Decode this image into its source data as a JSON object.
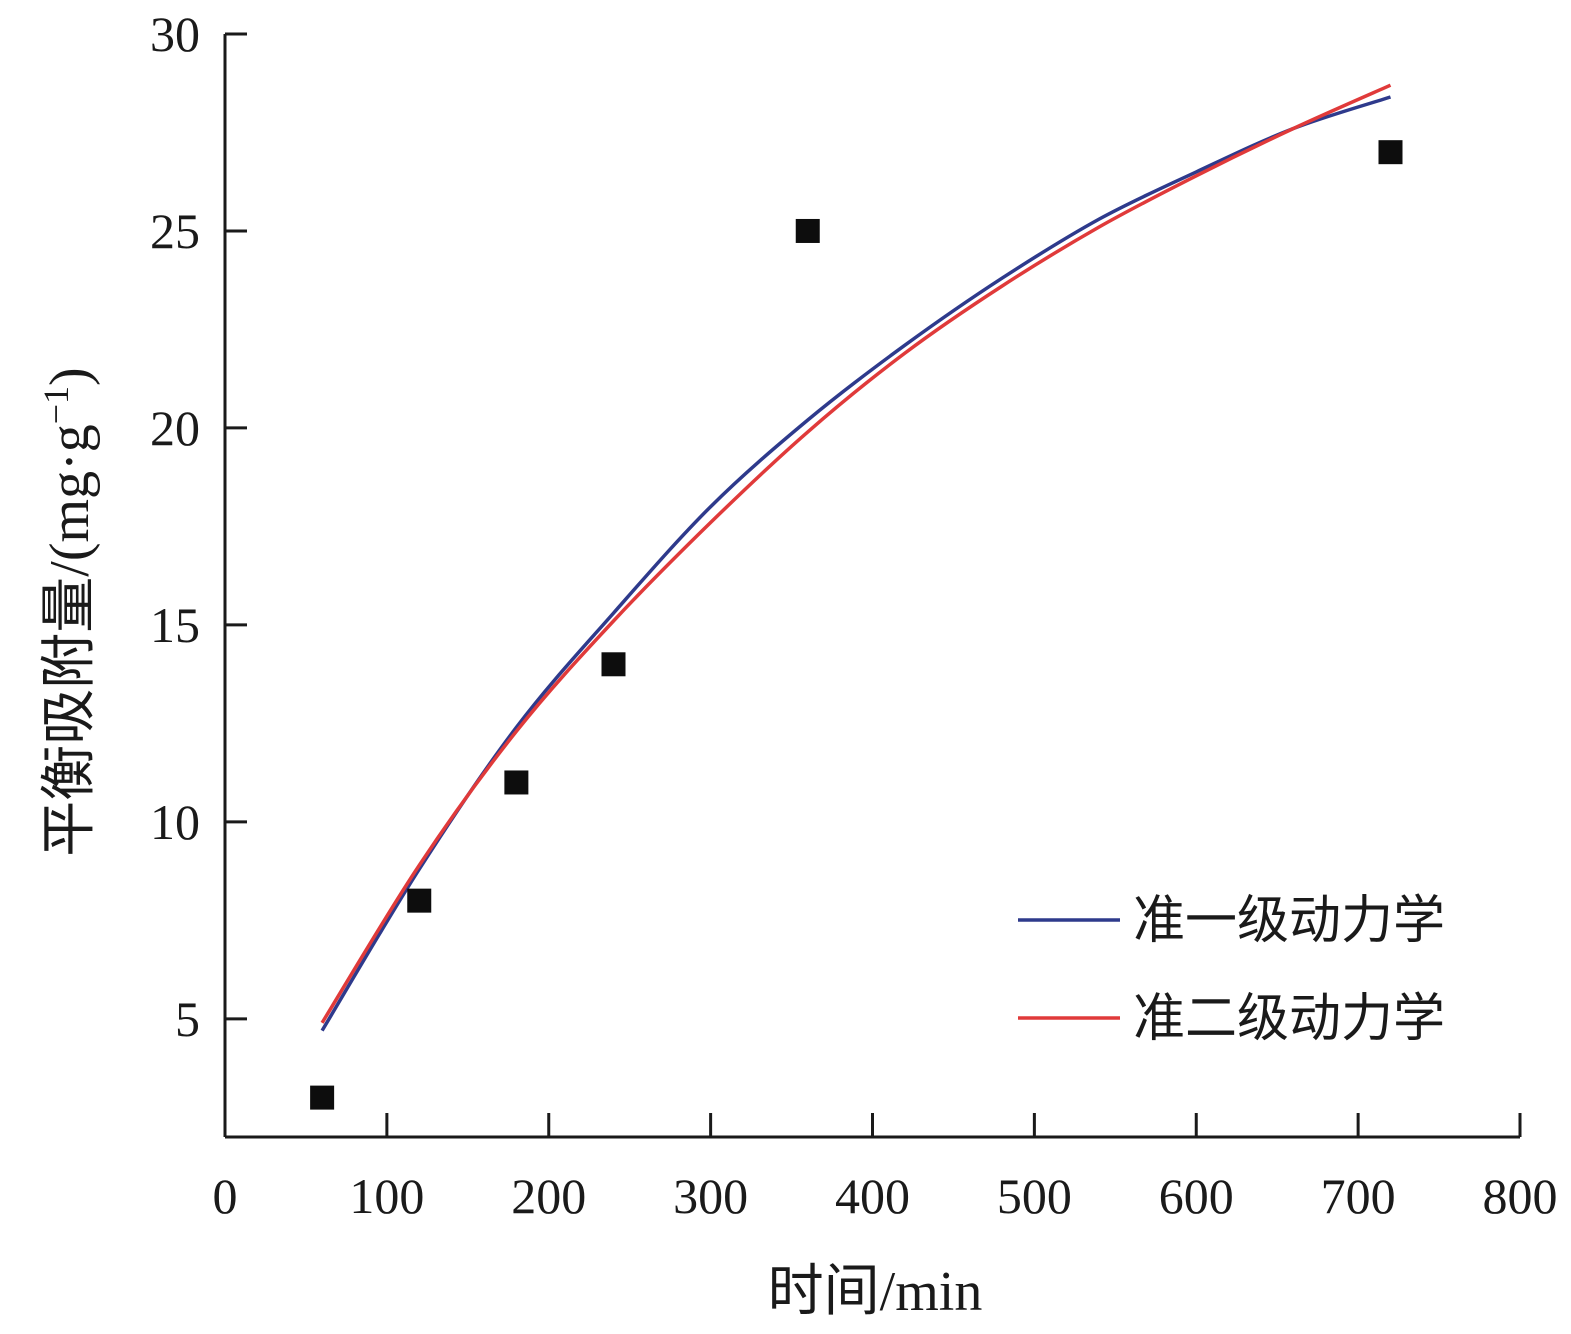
{
  "chart_data": {
    "type": "scatter",
    "title": "",
    "xlabel": "时间/min",
    "ylabel": "平衡吸附量/(mg·g",
    "ylabel_superscript": "−1",
    "ylabel_close": ")",
    "xlim": [
      0,
      800
    ],
    "ylim": [
      2,
      30
    ],
    "xticks": [
      0,
      100,
      200,
      300,
      400,
      500,
      600,
      700,
      800
    ],
    "yticks": [
      5,
      10,
      15,
      20,
      25,
      30
    ],
    "grid": false,
    "legend_position": "bottom-right",
    "points": {
      "x": [
        60,
        120,
        180,
        240,
        360,
        720
      ],
      "y": [
        3,
        8,
        11,
        14,
        25,
        27
      ]
    },
    "series": [
      {
        "name": "准一级动力学",
        "color": "#2e3a8c",
        "x": [
          60,
          120,
          180,
          240,
          300,
          360,
          420,
          480,
          540,
          600,
          660,
          720
        ],
        "y": [
          4.7,
          8.8,
          12.4,
          15.3,
          18.0,
          20.2,
          22.1,
          23.8,
          25.3,
          26.5,
          27.6,
          28.4
        ]
      },
      {
        "name": "准二级动力学",
        "color": "#e03a3a",
        "x": [
          60,
          120,
          180,
          240,
          300,
          360,
          420,
          480,
          540,
          600,
          660,
          720
        ],
        "y": [
          4.9,
          8.9,
          12.3,
          15.1,
          17.6,
          19.9,
          21.9,
          23.6,
          25.1,
          26.4,
          27.6,
          28.7
        ]
      }
    ]
  }
}
